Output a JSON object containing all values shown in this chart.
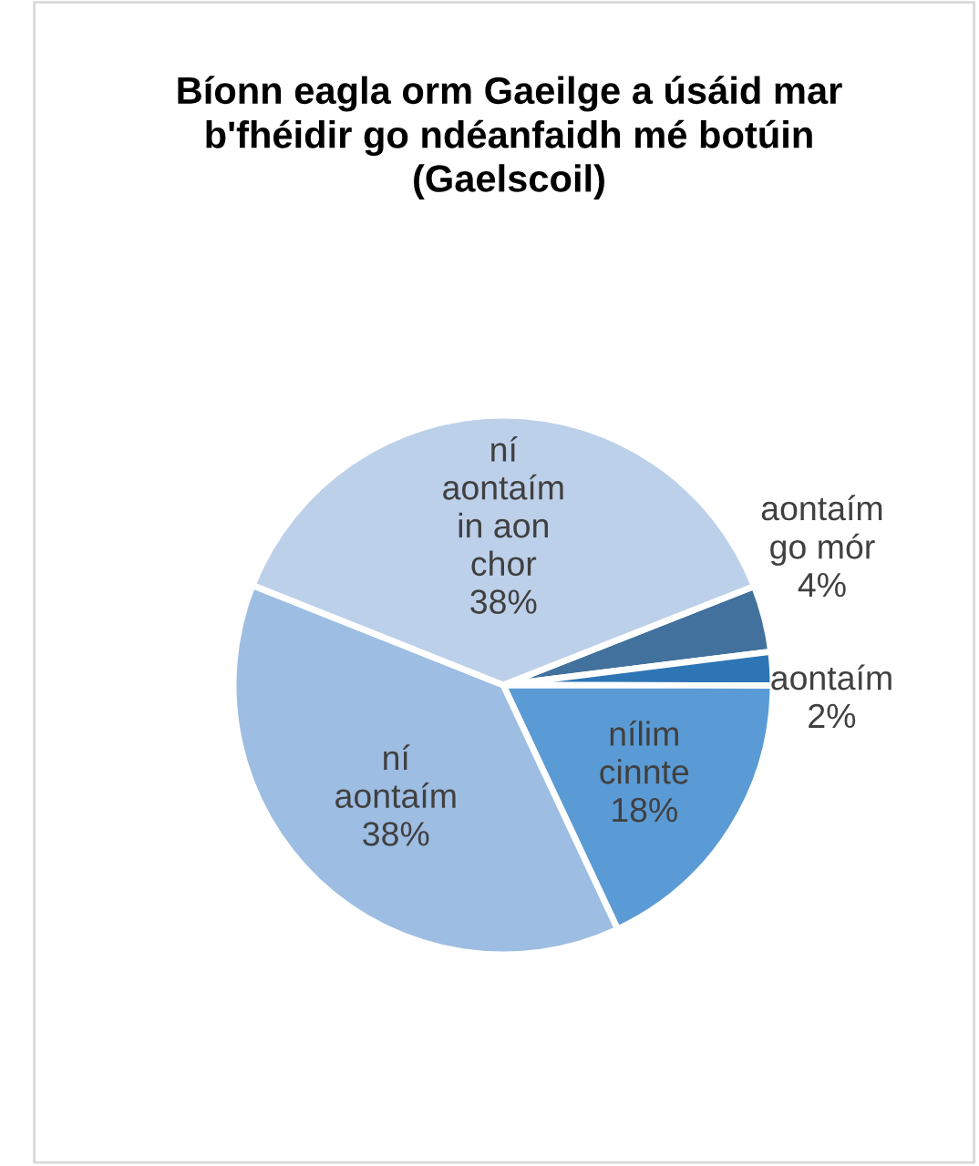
{
  "chart_data": {
    "type": "pie",
    "title": "Bíonn eagla orm Gaeilge a úsáid mar\nb'fhéidir go ndéanfaidh mé botúin\n(Gaelscoil)",
    "categories": [
      "aontaím\ngo mór",
      "aontaím",
      "nílim\ncinnte",
      "ní\naontaím",
      "ní\naontaím\nin aon\nchor"
    ],
    "values": [
      4,
      2,
      18,
      38,
      38
    ],
    "value_labels": [
      "4%",
      "2%",
      "18%",
      "38%",
      "38%"
    ],
    "colors": [
      "#41719c",
      "#2e75b6",
      "#5b9bd5",
      "#9dbde3",
      "#bdd0ea"
    ]
  }
}
